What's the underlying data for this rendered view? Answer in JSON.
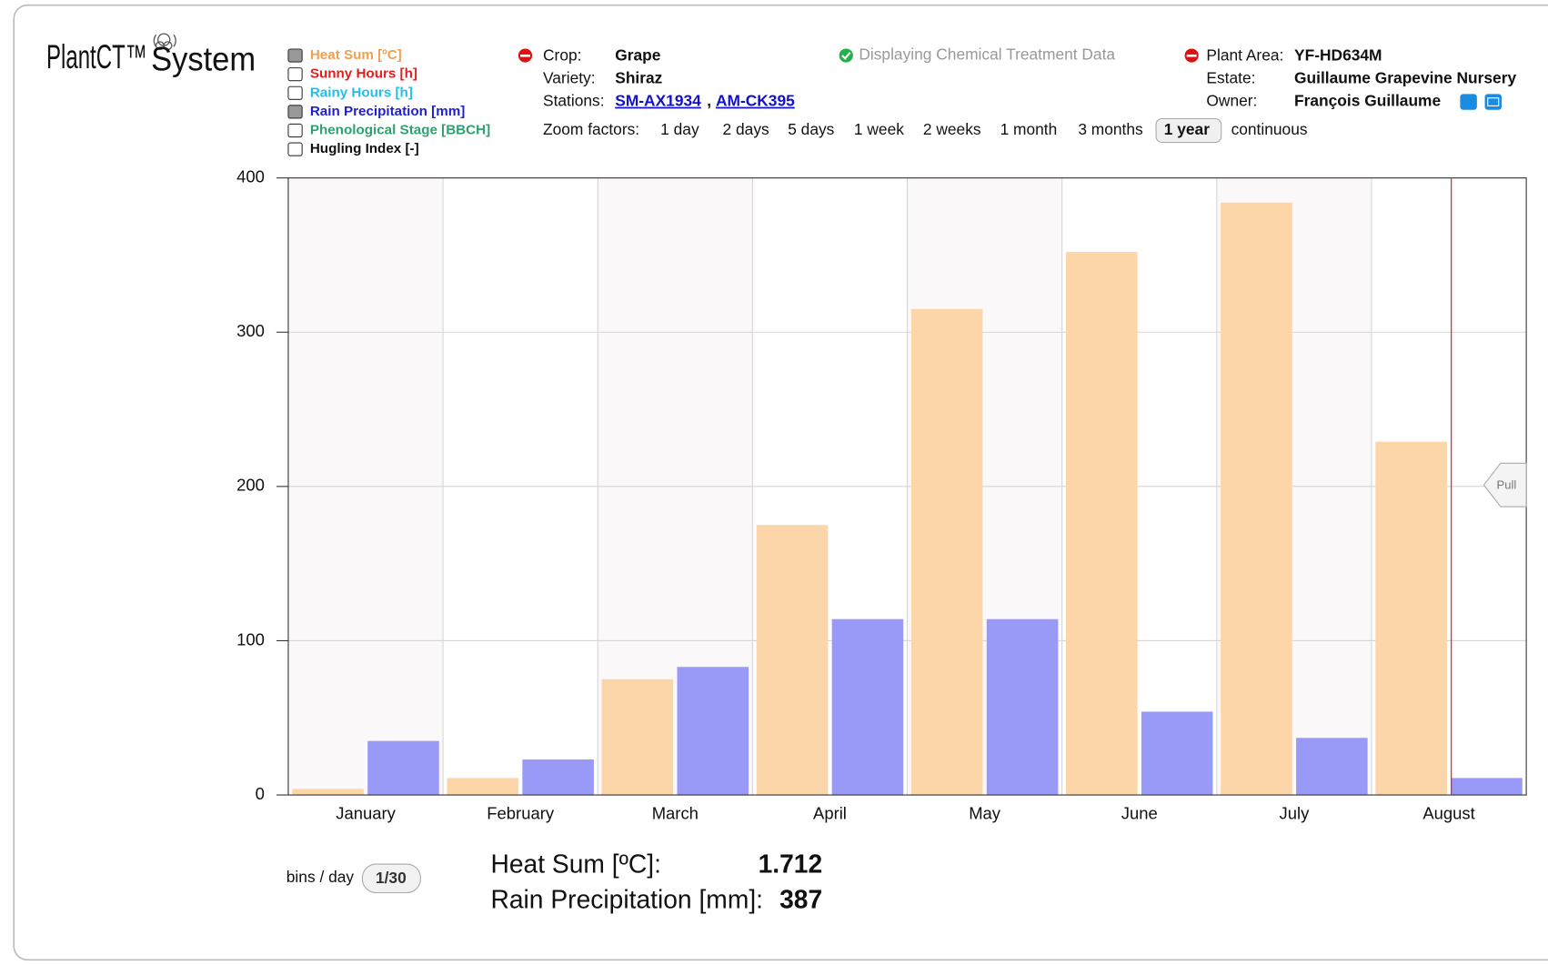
{
  "logo": {
    "left": "PlantCT™",
    "right": "System"
  },
  "legend": [
    {
      "label": "Heat Sum [ºC]",
      "color": "#f0a050",
      "checked": true
    },
    {
      "label": "Sunny Hours [h]",
      "color": "#e02020",
      "checked": false
    },
    {
      "label": "Rainy Hours [h]",
      "color": "#20c0ea",
      "checked": false
    },
    {
      "label": "Rain Precipitation [mm]",
      "color": "#2020d0",
      "checked": true
    },
    {
      "label": "Phenological Stage [BBCH]",
      "color": "#30a070",
      "checked": false
    },
    {
      "label": "Hugling Index [-]",
      "color": "#111111",
      "checked": false
    }
  ],
  "crop": {
    "label": "Crop:",
    "value": "Grape"
  },
  "variety": {
    "label": "Variety:",
    "value": "Shiraz"
  },
  "stations": {
    "label": "Stations:",
    "links": [
      "SM-AX1934",
      "AM-CK395"
    ],
    "separator": ","
  },
  "zoom": {
    "label": "Zoom factors:",
    "options": [
      "1 day",
      "2 days",
      "5 days",
      "1 week",
      "2 weeks",
      "1 month",
      "3 months",
      "1 year",
      "continuous"
    ],
    "selected": 7
  },
  "notice": "Displaying Chemical Treatment Data",
  "plant_area": {
    "label": "Plant Area:",
    "value": "YF-HD634M"
  },
  "estate": {
    "label": "Estate:",
    "value": "Guillaume Grapevine Nursery"
  },
  "owner": {
    "label": "Owner:",
    "value": "François Guillaume"
  },
  "pull": "Pull",
  "bins": {
    "label": "bins / day",
    "value": "1/30"
  },
  "summary": [
    {
      "label": "Heat Sum [ºC]:",
      "value": "1.712"
    },
    {
      "label": "Rain Precipitation [mm]:",
      "value": "387"
    }
  ],
  "chart_data": {
    "type": "bar",
    "categories": [
      "January",
      "February",
      "March",
      "April",
      "May",
      "June",
      "July",
      "August"
    ],
    "series": [
      {
        "color": "#fcd5a8",
        "values": [
          4,
          11,
          75,
          175,
          315,
          352,
          384,
          229
        ]
      },
      {
        "color": "#9999f8",
        "values": [
          35,
          23,
          83,
          114,
          114,
          54,
          37,
          11
        ]
      }
    ],
    "ylim": [
      0,
      400
    ],
    "yticks": [
      0,
      100,
      200,
      300,
      400
    ],
    "grid": true
  }
}
